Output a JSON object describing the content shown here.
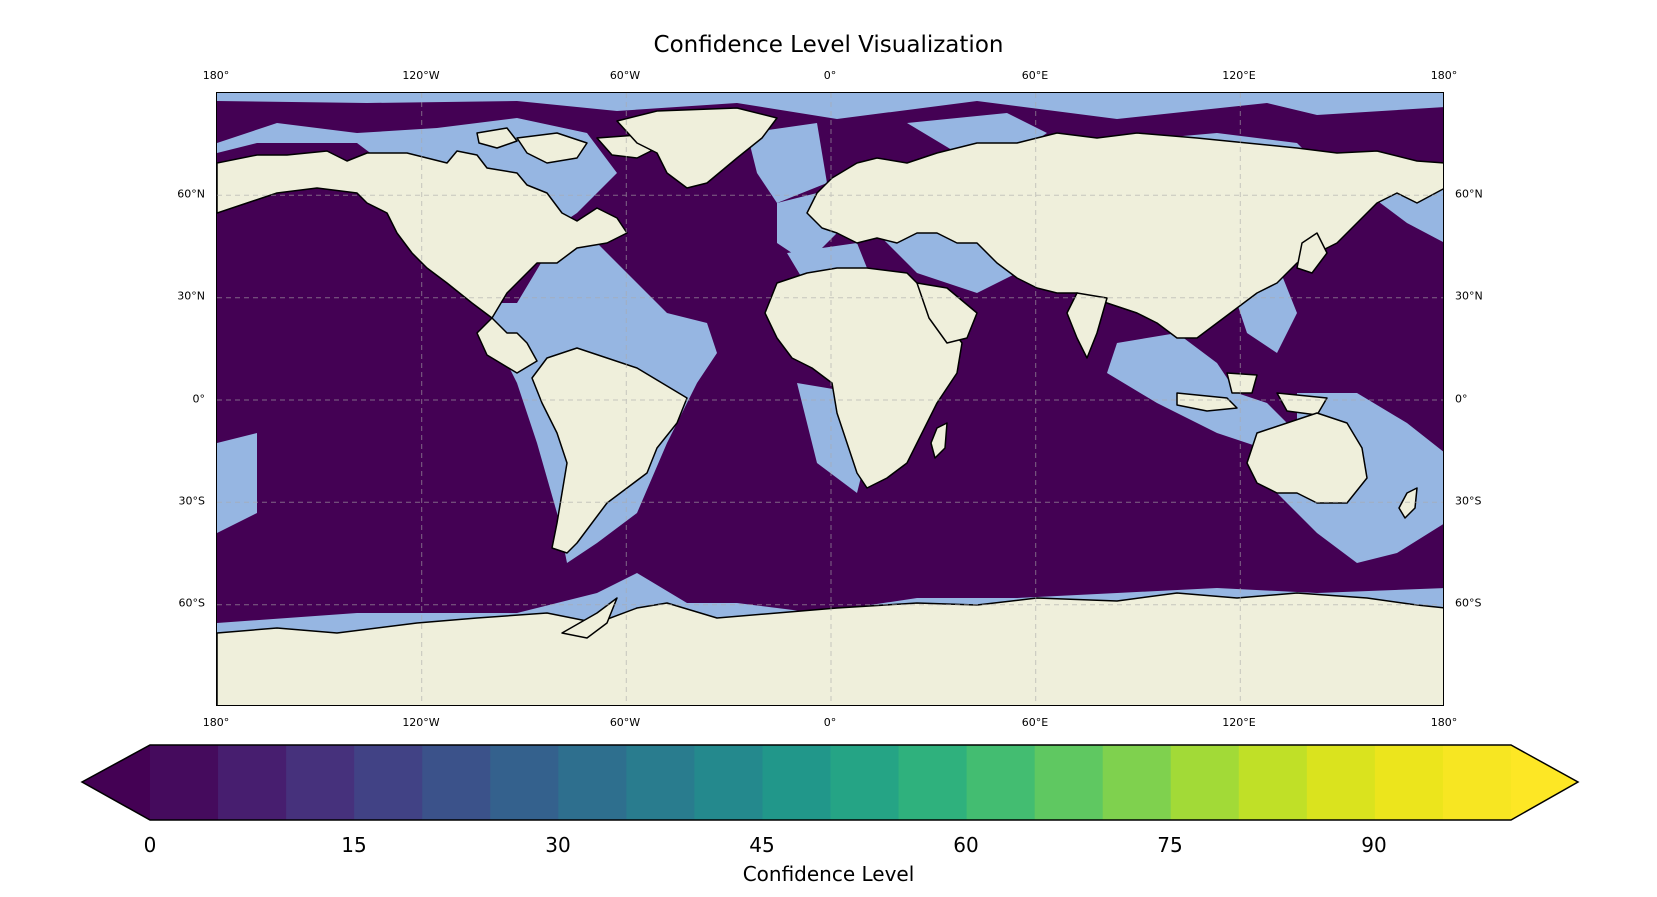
{
  "title": "Confidence Level Visualization",
  "map": {
    "lon_labels": [
      "180°",
      "120°W",
      "60°W",
      "0°",
      "60°E",
      "120°E",
      "180°"
    ],
    "lat_labels": [
      "60°N",
      "30°N",
      "0°",
      "30°S",
      "60°S"
    ],
    "colors": {
      "ocean_deep": "#440154",
      "ocean_shallow": "#96b6e2",
      "land": "#efefdb",
      "border": "#000000",
      "gridline": "#aaaaaa"
    }
  },
  "colorbar": {
    "label": "Confidence Level",
    "ticks": [
      "0",
      "15",
      "30",
      "45",
      "60",
      "75",
      "90"
    ],
    "colormap": "viridis",
    "range": [
      0,
      100
    ],
    "step": 5,
    "extend": "both"
  }
}
